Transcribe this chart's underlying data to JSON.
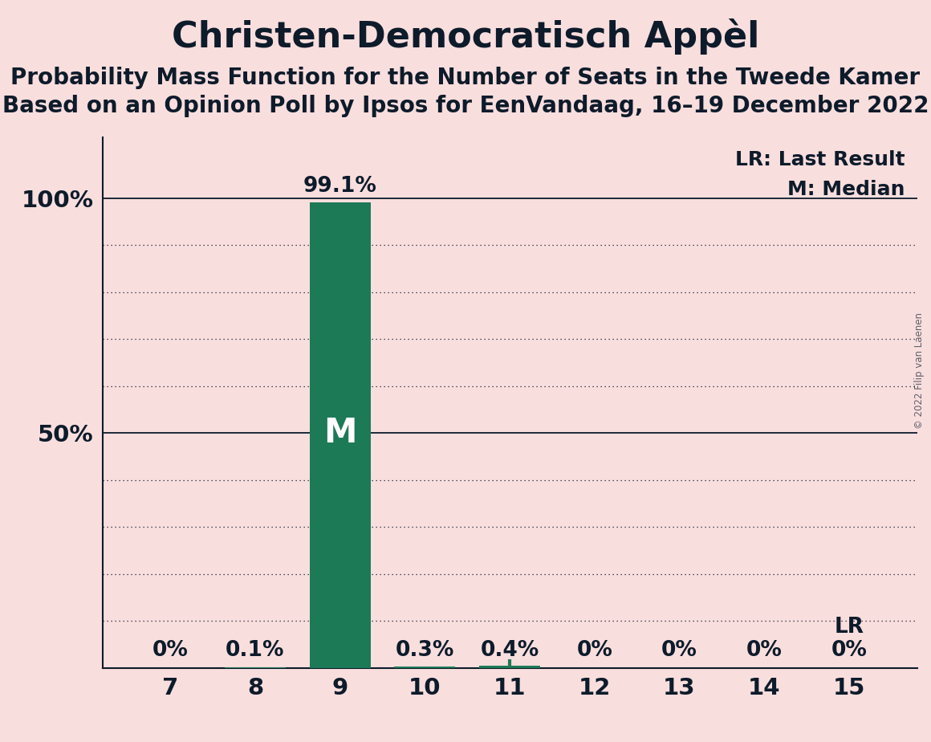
{
  "title": "Christen-Democratisch Appèl",
  "subtitle1": "Probability Mass Function for the Number of Seats in the Tweede Kamer",
  "subtitle2": "Based on an Opinion Poll by Ipsos for EenVandaag, 16–19 December 2022",
  "copyright": "© 2022 Filip van Laenen",
  "seats": [
    7,
    8,
    9,
    10,
    11,
    12,
    13,
    14,
    15
  ],
  "probabilities": [
    0.0,
    0.001,
    0.991,
    0.003,
    0.004,
    0.0,
    0.0,
    0.0,
    0.0
  ],
  "prob_labels": [
    "0%",
    "0.1%",
    "99.1%",
    "0.3%",
    "0.4%",
    "0%",
    "0%",
    "0%",
    "0%"
  ],
  "bar_color": "#1d7a56",
  "lr_seat": 11,
  "median_seat": 9,
  "background_color": "#f9dede",
  "text_color": "#0d1b2a",
  "legend_lr": "LR: Last Result",
  "legend_m": "M: Median",
  "yticks": [
    0.0,
    0.1,
    0.2,
    0.3,
    0.4,
    0.5,
    0.6,
    0.7,
    0.8,
    0.9,
    1.0
  ],
  "title_fontsize": 32,
  "subtitle_fontsize": 20,
  "prob_label_fontsize": 19,
  "tick_fontsize": 21,
  "legend_fontsize": 18,
  "m_fontsize": 30,
  "lr_text_fontsize": 19
}
